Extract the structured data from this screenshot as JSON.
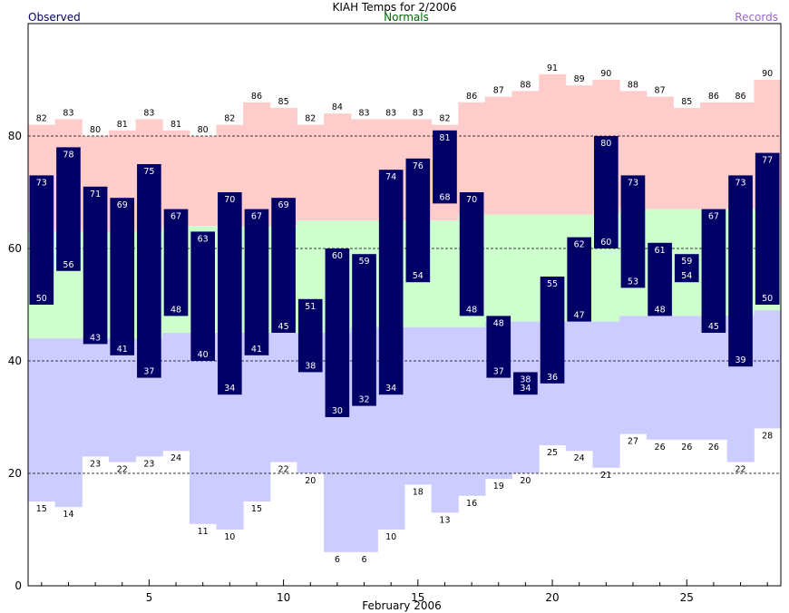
{
  "chart_data": {
    "type": "bar",
    "title": "KIAH Temps for 2/2006",
    "xlabel": "February 2006",
    "legend": {
      "observed": "Observed",
      "normals": "Normals",
      "records": "Records"
    },
    "colors": {
      "observed": "#000066",
      "normals": "#ccffcc",
      "records_high": "#ffcccc",
      "records_low": "#ccccff",
      "observed_label": "#000066",
      "normals_label": "#006600",
      "records_label": "#9966cc"
    },
    "ylim": [
      0,
      100
    ],
    "xlim": [
      0.5,
      28.5
    ],
    "yticks": [
      0,
      20,
      40,
      60,
      80
    ],
    "xticks": [
      5,
      10,
      15,
      20,
      25
    ],
    "grid": "dashed horizontal at 20, 40, 60, 80",
    "days": [
      1,
      2,
      3,
      4,
      5,
      6,
      7,
      8,
      9,
      10,
      11,
      12,
      13,
      14,
      15,
      16,
      17,
      18,
      19,
      20,
      21,
      22,
      23,
      24,
      25,
      26,
      27,
      28
    ],
    "series": [
      {
        "name": "Observed",
        "key": "obs_high",
        "values": [
          73,
          78,
          71,
          69,
          75,
          67,
          63,
          70,
          67,
          69,
          51,
          60,
          59,
          74,
          76,
          81,
          70,
          48,
          38,
          55,
          62,
          80,
          73,
          61,
          59,
          67,
          73,
          77
        ]
      },
      {
        "name": "Observed",
        "key": "obs_low",
        "values": [
          50,
          56,
          43,
          41,
          37,
          48,
          40,
          34,
          41,
          45,
          38,
          30,
          32,
          34,
          54,
          68,
          48,
          37,
          34,
          36,
          47,
          60,
          53,
          48,
          54,
          45,
          39,
          50
        ]
      },
      {
        "name": "Normals",
        "key": "normal_high",
        "values": [
          63,
          63,
          63,
          63,
          63,
          64,
          64,
          64,
          64,
          64,
          65,
          65,
          65,
          65,
          65,
          65,
          66,
          66,
          66,
          66,
          66,
          66,
          67,
          67,
          67,
          67,
          67,
          67
        ]
      },
      {
        "name": "Normals",
        "key": "normal_low",
        "values": [
          44,
          44,
          44,
          44,
          44,
          45,
          45,
          45,
          45,
          45,
          45,
          45,
          46,
          46,
          46,
          46,
          46,
          47,
          47,
          47,
          47,
          47,
          48,
          48,
          48,
          48,
          48,
          49
        ]
      },
      {
        "name": "Records",
        "key": "record_high",
        "values": [
          82,
          83,
          80,
          81,
          83,
          81,
          80,
          82,
          86,
          85,
          82,
          84,
          83,
          83,
          83,
          82,
          86,
          87,
          88,
          91,
          89,
          90,
          88,
          87,
          85,
          86,
          86,
          90
        ]
      },
      {
        "name": "Records",
        "key": "record_low",
        "values": [
          15,
          14,
          23,
          22,
          23,
          24,
          11,
          10,
          15,
          22,
          20,
          6,
          6,
          10,
          18,
          13,
          16,
          19,
          20,
          25,
          24,
          21,
          27,
          26,
          26,
          26,
          22,
          28
        ]
      }
    ]
  }
}
